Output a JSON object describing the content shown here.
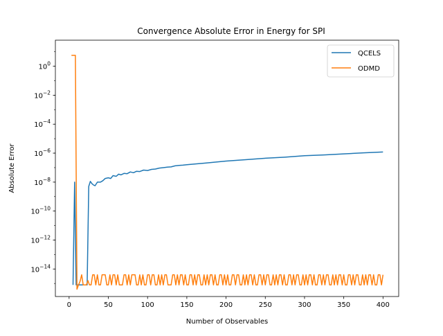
{
  "chart_data": {
    "type": "line",
    "title": "Convergence Absolute Error in Energy for SPI",
    "xlabel": "Number of Observables",
    "ylabel": "Absolute Error",
    "xlim": [
      -17.5,
      420
    ],
    "ylim_log10": [
      -15.9,
      1.8
    ],
    "y_scale": "log",
    "grid": false,
    "legend_position": "top-right",
    "x_ticks": [
      {
        "value": 0,
        "label": "0"
      },
      {
        "value": 50,
        "label": "50"
      },
      {
        "value": 100,
        "label": "100"
      },
      {
        "value": 150,
        "label": "150"
      },
      {
        "value": 200,
        "label": "200"
      },
      {
        "value": 250,
        "label": "250"
      },
      {
        "value": 300,
        "label": "300"
      },
      {
        "value": 350,
        "label": "350"
      },
      {
        "value": 400,
        "label": "400"
      }
    ],
    "y_ticks": [
      {
        "value": 0,
        "base": "10",
        "exp": "0"
      },
      {
        "value": -2,
        "base": "10",
        "exp": "−2"
      },
      {
        "value": -4,
        "base": "10",
        "exp": "−4"
      },
      {
        "value": -6,
        "base": "10",
        "exp": "−6"
      },
      {
        "value": -8,
        "base": "10",
        "exp": "−8"
      },
      {
        "value": -10,
        "base": "10",
        "exp": "−10"
      },
      {
        "value": -12,
        "base": "10",
        "exp": "−12"
      },
      {
        "value": -14,
        "base": "10",
        "exp": "−14"
      }
    ],
    "series": [
      {
        "name": "QCELS",
        "color": "#1f77b4",
        "points": [
          [
            5,
            -15.1
          ],
          [
            7,
            -8.0
          ],
          [
            9,
            -15.1
          ],
          [
            12,
            -15.1
          ],
          [
            15,
            -15.1
          ],
          [
            18,
            -15.1
          ],
          [
            21,
            -15.1
          ],
          [
            23,
            -15.1
          ],
          [
            25,
            -8.3
          ],
          [
            27,
            -7.95
          ],
          [
            29,
            -8.1
          ],
          [
            31,
            -8.2
          ],
          [
            33,
            -8.25
          ],
          [
            36,
            -8.0
          ],
          [
            40,
            -8.0
          ],
          [
            43,
            -7.9
          ],
          [
            46,
            -7.75
          ],
          [
            50,
            -7.7
          ],
          [
            53,
            -7.75
          ],
          [
            56,
            -7.55
          ],
          [
            60,
            -7.6
          ],
          [
            63,
            -7.45
          ],
          [
            66,
            -7.5
          ],
          [
            70,
            -7.4
          ],
          [
            74,
            -7.42
          ],
          [
            78,
            -7.3
          ],
          [
            82,
            -7.35
          ],
          [
            86,
            -7.25
          ],
          [
            90,
            -7.27
          ],
          [
            95,
            -7.17
          ],
          [
            100,
            -7.2
          ],
          [
            105,
            -7.12
          ],
          [
            110,
            -7.1
          ],
          [
            115,
            -7.03
          ],
          [
            120,
            -7.0
          ],
          [
            125,
            -6.97
          ],
          [
            130,
            -6.95
          ],
          [
            135,
            -6.88
          ],
          [
            140,
            -6.85
          ],
          [
            145,
            -6.83
          ],
          [
            150,
            -6.8
          ],
          [
            175,
            -6.68
          ],
          [
            200,
            -6.55
          ],
          [
            225,
            -6.45
          ],
          [
            250,
            -6.35
          ],
          [
            275,
            -6.28
          ],
          [
            300,
            -6.18
          ],
          [
            325,
            -6.12
          ],
          [
            350,
            -6.05
          ],
          [
            375,
            -5.98
          ],
          [
            400,
            -5.92
          ]
        ]
      },
      {
        "name": "ODMD",
        "color": "#ff7f0e",
        "base": -15.1,
        "spike": -14.4,
        "points": [
          [
            3,
            0.75
          ],
          [
            8,
            0.75
          ],
          [
            10,
            -15.4
          ],
          [
            12,
            -15.1
          ],
          [
            14,
            -14.85
          ],
          [
            16,
            -14.4
          ],
          [
            18,
            -15.1
          ],
          [
            20,
            -15.1
          ],
          [
            22,
            -15.1
          ],
          [
            24,
            -14.8
          ],
          [
            26,
            -15.1
          ]
        ],
        "spikes_from": 26,
        "spikes_to": 400,
        "spike_pattern": [
          0,
          1,
          1,
          0,
          1,
          0,
          0,
          1,
          1,
          1,
          0,
          0,
          1,
          0,
          1,
          1,
          0,
          1,
          0,
          0,
          0,
          1,
          1,
          0,
          1,
          0,
          1,
          1,
          1,
          0,
          0,
          1,
          0,
          1,
          0,
          0,
          1,
          1,
          0,
          1,
          1,
          0,
          0,
          1,
          0,
          1,
          0,
          1,
          1,
          0,
          0,
          0,
          1,
          1,
          0,
          1,
          0,
          1,
          1,
          0,
          1,
          0,
          0,
          1,
          1,
          0,
          1,
          0,
          1,
          1,
          0,
          0,
          1,
          0,
          1,
          0,
          1,
          1,
          0,
          1,
          0,
          0,
          1,
          1,
          0,
          1,
          0,
          1,
          0,
          0,
          1,
          1,
          0,
          1,
          1,
          0,
          0,
          1,
          0,
          1,
          0,
          1,
          1,
          0,
          1,
          0,
          0,
          1,
          1,
          0,
          1,
          0,
          1,
          1,
          0,
          0,
          1,
          0,
          1,
          0,
          1,
          1,
          0,
          1,
          0,
          0,
          1,
          1,
          0,
          1,
          0,
          1,
          1,
          0,
          0,
          1,
          0,
          1,
          0,
          1,
          1,
          0,
          1,
          0,
          0,
          1,
          1,
          0,
          1,
          0,
          1,
          1,
          0,
          0,
          1,
          0,
          1,
          0,
          1,
          1,
          0,
          1,
          0,
          0,
          1,
          1,
          0,
          1,
          0,
          1,
          1,
          0,
          0,
          1,
          0,
          1,
          0,
          1,
          1,
          0,
          1,
          0,
          0,
          1,
          1
        ]
      }
    ]
  }
}
